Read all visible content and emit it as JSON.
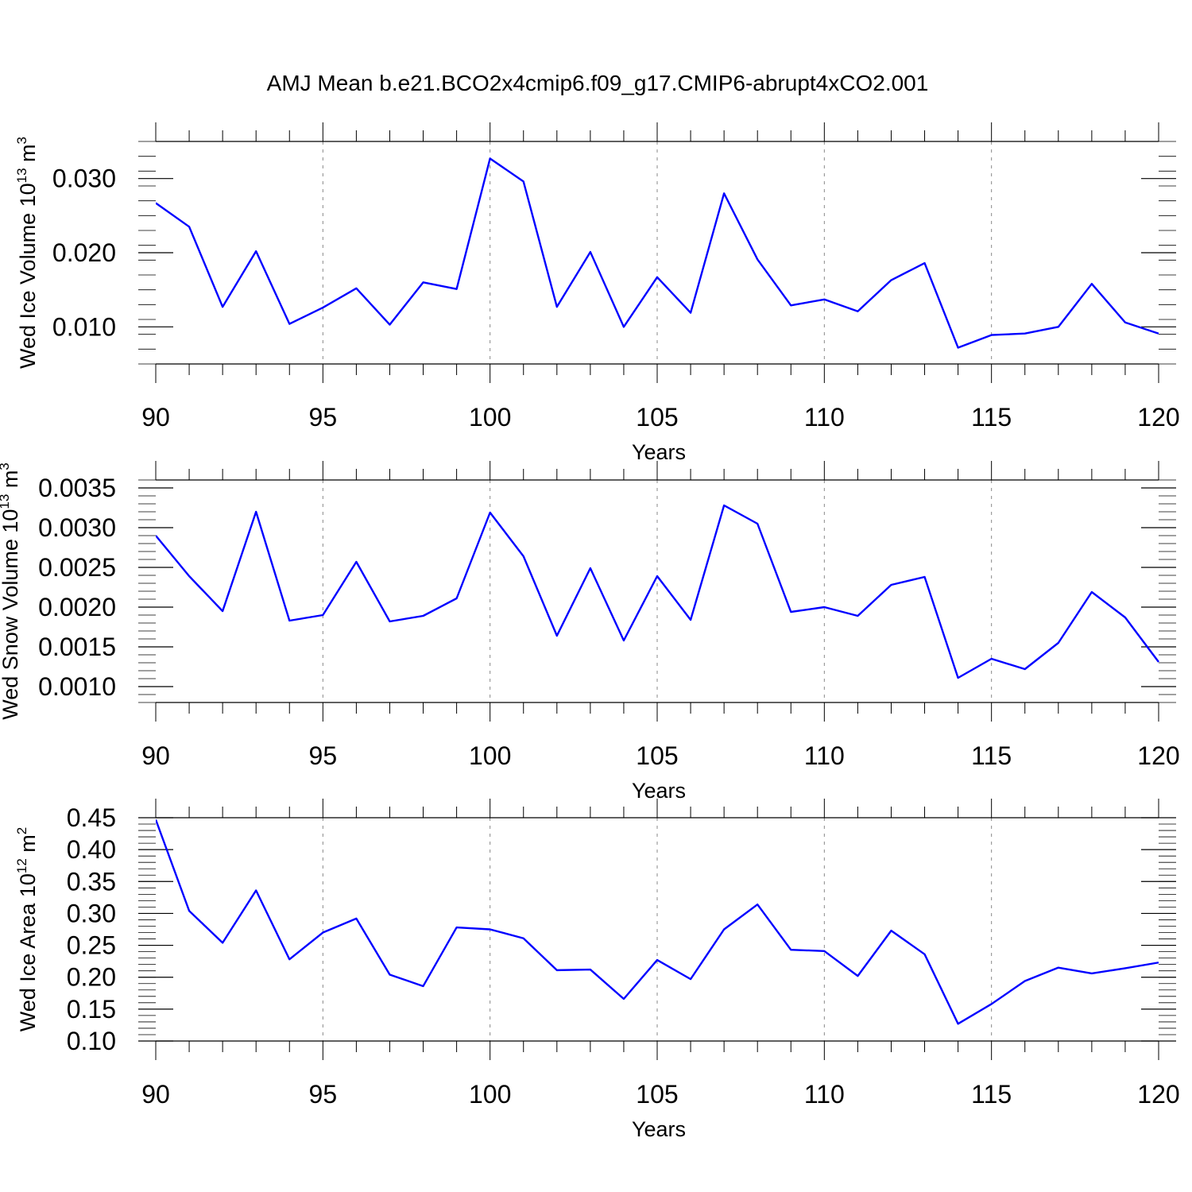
{
  "title": "AMJ Mean b.e21.BCO2x4cmip6.f09_g17.CMIP6-abrupt4xCO2.001",
  "colors": {
    "line": "#0000ff",
    "axis": "#000000",
    "grid": "#888888"
  },
  "chart_data": [
    {
      "type": "line",
      "ylabel_main": "Wed Ice Volume 10",
      "ylabel_exp": "13",
      "ylabel_unit": " m",
      "ylabel_unit_exp": "3",
      "xlabel": "Years",
      "xlim": [
        90,
        120
      ],
      "ylim": [
        0.005,
        0.035
      ],
      "xticks": [
        90,
        95,
        100,
        105,
        110,
        115,
        120
      ],
      "xtick_labels": [
        "90",
        "95",
        "100",
        "105",
        "110",
        "115",
        "120"
      ],
      "yticks": [
        0.01,
        0.02,
        0.03
      ],
      "ytick_labels": [
        "0.010",
        "0.020",
        "0.030"
      ],
      "yminor_step": 0.002,
      "x": [
        90,
        91,
        92,
        93,
        94,
        95,
        96,
        97,
        98,
        99,
        100,
        101,
        102,
        103,
        104,
        105,
        106,
        107,
        108,
        109,
        110,
        111,
        112,
        113,
        114,
        115,
        116,
        117,
        118,
        119,
        120
      ],
      "values": [
        0.0267,
        0.0235,
        0.0127,
        0.0202,
        0.0104,
        0.0126,
        0.0152,
        0.0103,
        0.016,
        0.0151,
        0.0327,
        0.0296,
        0.0127,
        0.0201,
        0.01,
        0.0167,
        0.0119,
        0.028,
        0.0191,
        0.0129,
        0.0137,
        0.0121,
        0.0163,
        0.0186,
        0.0072,
        0.0089,
        0.0091,
        0.01,
        0.0158,
        0.0106,
        0.0091
      ]
    },
    {
      "type": "line",
      "ylabel_main": "Wed Snow Volume 10",
      "ylabel_exp": "13",
      "ylabel_unit": " m",
      "ylabel_unit_exp": "3",
      "xlabel": "Years",
      "xlim": [
        90,
        120
      ],
      "ylim": [
        0.0008,
        0.0036
      ],
      "xticks": [
        90,
        95,
        100,
        105,
        110,
        115,
        120
      ],
      "xtick_labels": [
        "90",
        "95",
        "100",
        "105",
        "110",
        "115",
        "120"
      ],
      "yticks": [
        0.001,
        0.0015,
        0.002,
        0.0025,
        0.003,
        0.0035
      ],
      "ytick_labels": [
        "0.0010",
        "0.0015",
        "0.0020",
        "0.0025",
        "0.0030",
        "0.0035"
      ],
      "yminor_step": 0.0001,
      "x": [
        90,
        91,
        92,
        93,
        94,
        95,
        96,
        97,
        98,
        99,
        100,
        101,
        102,
        103,
        104,
        105,
        106,
        107,
        108,
        109,
        110,
        111,
        112,
        113,
        114,
        115,
        116,
        117,
        118,
        119,
        120
      ],
      "values": [
        0.0029,
        0.00239,
        0.00195,
        0.0032,
        0.00183,
        0.0019,
        0.00257,
        0.00182,
        0.00189,
        0.00211,
        0.00319,
        0.00264,
        0.00164,
        0.00249,
        0.00158,
        0.00239,
        0.00184,
        0.00328,
        0.00305,
        0.00194,
        0.002,
        0.00189,
        0.00228,
        0.00238,
        0.00111,
        0.00135,
        0.00122,
        0.00155,
        0.00219,
        0.00187,
        0.00131
      ]
    },
    {
      "type": "line",
      "ylabel_main": "Wed Ice Area 10",
      "ylabel_exp": "12",
      "ylabel_unit": " m",
      "ylabel_unit_exp": "2",
      "xlabel": "Years",
      "xlim": [
        90,
        120
      ],
      "ylim": [
        0.1,
        0.45
      ],
      "xticks": [
        90,
        95,
        100,
        105,
        110,
        115,
        120
      ],
      "xtick_labels": [
        "90",
        "95",
        "100",
        "105",
        "110",
        "115",
        "120"
      ],
      "yticks": [
        0.1,
        0.15,
        0.2,
        0.25,
        0.3,
        0.35,
        0.4,
        0.45
      ],
      "ytick_labels": [
        "0.10",
        "0.15",
        "0.20",
        "0.25",
        "0.30",
        "0.35",
        "0.40",
        "0.45"
      ],
      "yminor_step": 0.01,
      "x": [
        90,
        91,
        92,
        93,
        94,
        95,
        96,
        97,
        98,
        99,
        100,
        101,
        102,
        103,
        104,
        105,
        106,
        107,
        108,
        109,
        110,
        111,
        112,
        113,
        114,
        115,
        116,
        117,
        118,
        119,
        120
      ],
      "values": [
        0.447,
        0.304,
        0.254,
        0.336,
        0.228,
        0.27,
        0.292,
        0.204,
        0.186,
        0.278,
        0.275,
        0.261,
        0.211,
        0.212,
        0.166,
        0.227,
        0.197,
        0.275,
        0.314,
        0.243,
        0.241,
        0.202,
        0.273,
        0.236,
        0.127,
        0.158,
        0.194,
        0.215,
        0.206,
        0.214,
        0.223
      ]
    }
  ]
}
